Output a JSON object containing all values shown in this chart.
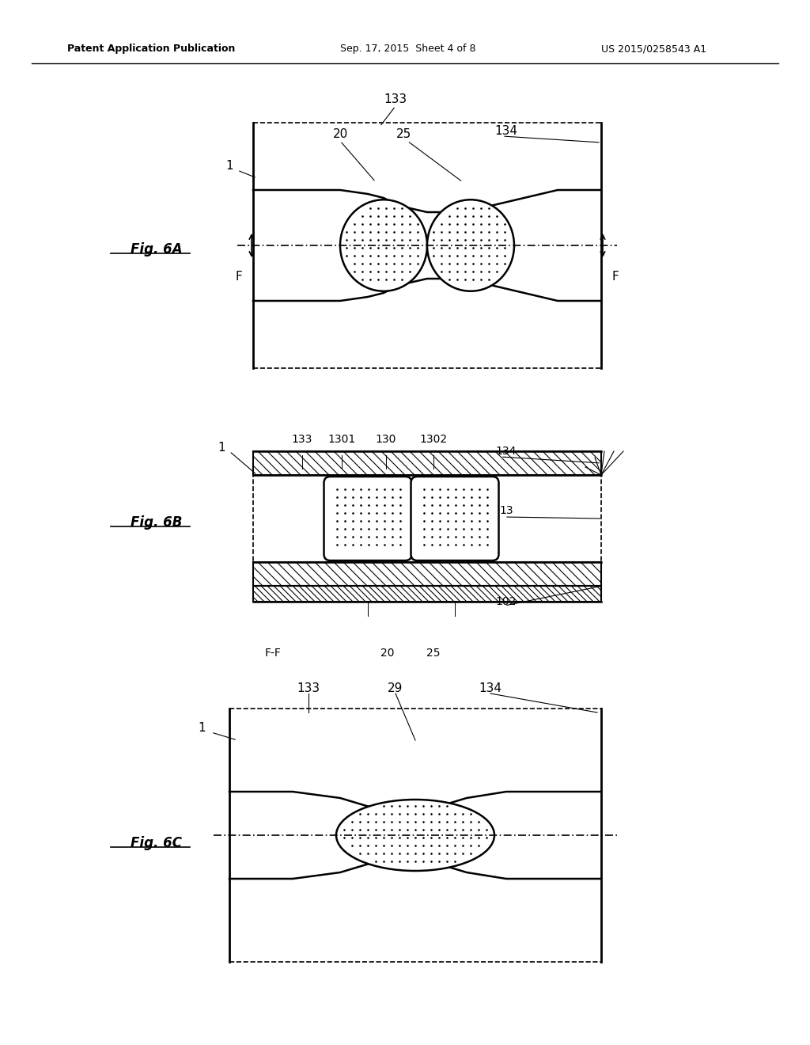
{
  "bg_color": "#ffffff",
  "header_left": "Patent Application Publication",
  "header_center": "Sep. 17, 2015  Sheet 4 of 8",
  "header_right": "US 2015/0258543 A1",
  "fig6A_label": "Fig. 6A",
  "fig6B_label": "Fig. 6B",
  "fig6C_label": "Fig. 6C"
}
